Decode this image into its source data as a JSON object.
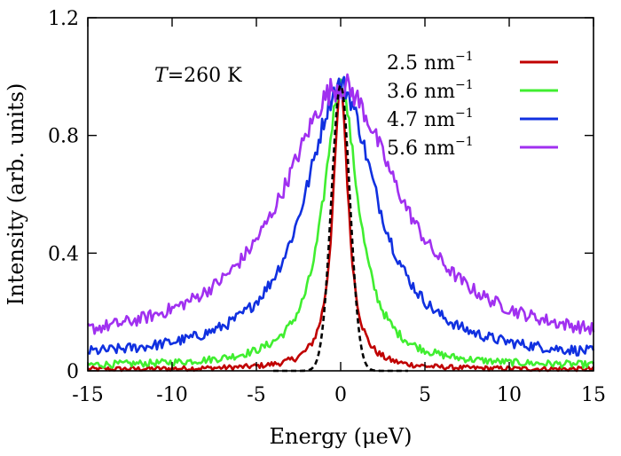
{
  "chart_data": {
    "type": "line",
    "title": "",
    "xlabel": "Energy (μeV)",
    "ylabel": "Intensity (arb. units)",
    "xlim": [
      -15,
      15
    ],
    "ylim": [
      0,
      1.2
    ],
    "xticks": [
      -15,
      -10,
      -5,
      0,
      5,
      10,
      15
    ],
    "yticks": [
      0,
      0.4,
      0.8,
      1.2
    ],
    "xtick_labels": [
      "-15",
      "-10",
      "-5",
      "0",
      "5",
      "10",
      "15"
    ],
    "ytick_labels": [
      "0",
      "0.4",
      "0.8",
      "1.2"
    ],
    "grid": false,
    "legend_position": "top-right",
    "annotation": {
      "var": "T",
      "rest": "=260 K"
    },
    "series": [
      {
        "name": "2.5 nm⁻¹",
        "label_base": "2.5 nm",
        "label_sup": "−1",
        "color": "#c00000",
        "gamma": 0.55,
        "base": 0.005,
        "noise": 0.008,
        "values_sample": {
          "x": [
            -15,
            -10,
            -5,
            -2,
            -1,
            0,
            1,
            2,
            5,
            10,
            15
          ],
          "y": [
            0.01,
            0.01,
            0.02,
            0.06,
            0.2,
            0.98,
            0.2,
            0.06,
            0.02,
            0.01,
            0.01
          ]
        }
      },
      {
        "name": "3.6 nm⁻¹",
        "label_base": "3.6 nm",
        "label_sup": "−1",
        "color": "#40ee30",
        "gamma": 1.25,
        "base": 0.015,
        "noise": 0.012,
        "values_sample": {
          "x": [
            -15,
            -10,
            -5,
            -2,
            -1,
            0,
            1,
            2,
            5,
            10,
            15
          ],
          "y": [
            0.03,
            0.05,
            0.13,
            0.38,
            0.6,
            0.96,
            0.6,
            0.38,
            0.13,
            0.05,
            0.03
          ]
        }
      },
      {
        "name": "4.7 nm⁻¹",
        "label_base": "4.7 nm",
        "label_sup": "−1",
        "color": "#1030e0",
        "gamma": 2.6,
        "base": 0.04,
        "noise": 0.018,
        "values_sample": {
          "x": [
            -15,
            -10,
            -5,
            -2,
            -1,
            0,
            1,
            2,
            5,
            10,
            15
          ],
          "y": [
            0.09,
            0.15,
            0.3,
            0.62,
            0.84,
            0.96,
            0.84,
            0.62,
            0.3,
            0.15,
            0.09
          ]
        }
      },
      {
        "name": "5.6 nm⁻¹",
        "label_base": "5.6 nm",
        "label_sup": "−1",
        "color": "#a030f0",
        "gamma": 4.2,
        "base": 0.08,
        "noise": 0.022,
        "values_sample": {
          "x": [
            -15,
            -10,
            -5,
            -2,
            -1,
            0,
            1,
            2,
            5,
            10,
            15
          ],
          "y": [
            0.13,
            0.2,
            0.38,
            0.62,
            0.76,
            1.0,
            0.76,
            0.62,
            0.38,
            0.2,
            0.13
          ]
        }
      }
    ],
    "resolution": {
      "name": "resolution",
      "color": "#000000",
      "style": "dashed",
      "shape": "gaussian",
      "sigma": 0.55,
      "amplitude": 0.97
    }
  }
}
